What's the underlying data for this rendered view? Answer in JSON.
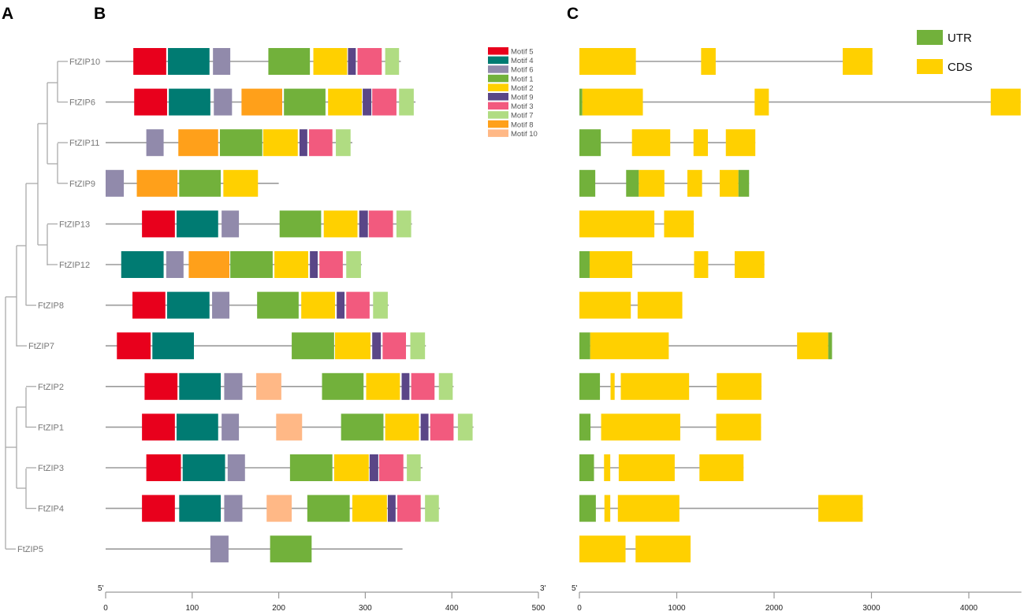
{
  "panels": {
    "a": "A",
    "b": "B",
    "c": "C"
  },
  "genes": [
    "FtZIP10",
    "FtZIP6",
    "FtZIP11",
    "FtZIP9",
    "FtZIP13",
    "FtZIP12",
    "FtZIP8",
    "FtZIP7",
    "FtZIP2",
    "FtZIP1",
    "FtZIP3",
    "FtZIP4",
    "FtZIP5"
  ],
  "motif_legend": [
    {
      "id": "M5",
      "label": "Motif 5",
      "color": "#e8001c"
    },
    {
      "id": "M4",
      "label": "Motif 4",
      "color": "#007b72"
    },
    {
      "id": "M6",
      "label": "Motif 6",
      "color": "#918aab"
    },
    {
      "id": "M1",
      "label": "Motif 1",
      "color": "#72b13b"
    },
    {
      "id": "M2",
      "label": "Motif 2",
      "color": "#ffd000"
    },
    {
      "id": "M9",
      "label": "Motif 9",
      "color": "#5a4687"
    },
    {
      "id": "M3",
      "label": "Motif 3",
      "color": "#f25a7e"
    },
    {
      "id": "M7",
      "label": "Motif 7",
      "color": "#b0dc82"
    },
    {
      "id": "M8",
      "label": "Motif 8",
      "color": "#ffa01a"
    },
    {
      "id": "M10",
      "label": "Motif 10",
      "color": "#ffb886"
    }
  ],
  "motifs": [
    {
      "length": 341,
      "items": [
        [
          "M5",
          32,
          70
        ],
        [
          "M4",
          72,
          120
        ],
        [
          "M6",
          124,
          144
        ],
        [
          "M1",
          188,
          236
        ],
        [
          "M2",
          240,
          279
        ],
        [
          "M9",
          280,
          289
        ],
        [
          "M3",
          291,
          319
        ],
        [
          "M7",
          323,
          339
        ]
      ]
    },
    {
      "length": 358,
      "items": [
        [
          "M5",
          33,
          71
        ],
        [
          "M4",
          73,
          121
        ],
        [
          "M6",
          125,
          146
        ],
        [
          "M8",
          157,
          204
        ],
        [
          "M1",
          206,
          254
        ],
        [
          "M2",
          257,
          296
        ],
        [
          "M9",
          297,
          307
        ],
        [
          "M3",
          308,
          336
        ],
        [
          "M7",
          339,
          356
        ]
      ]
    },
    {
      "length": 285,
      "items": [
        [
          "M6",
          47,
          67
        ],
        [
          "M8",
          84,
          130
        ],
        [
          "M1",
          132,
          181
        ],
        [
          "M2",
          182,
          222
        ],
        [
          "M9",
          224,
          233
        ],
        [
          "M3",
          235,
          262
        ],
        [
          "M7",
          266,
          283
        ]
      ]
    },
    {
      "length": 200,
      "items": [
        [
          "M6",
          0,
          21
        ],
        [
          "M8",
          36,
          83
        ],
        [
          "M1",
          85,
          133
        ],
        [
          "M2",
          136,
          176
        ]
      ]
    },
    {
      "length": 354,
      "items": [
        [
          "M5",
          42,
          80
        ],
        [
          "M4",
          82,
          130
        ],
        [
          "M6",
          134,
          154
        ],
        [
          "M1",
          201,
          249
        ],
        [
          "M2",
          252,
          291
        ],
        [
          "M9",
          293,
          303
        ],
        [
          "M3",
          304,
          332
        ],
        [
          "M7",
          336,
          353
        ]
      ]
    },
    {
      "length": 296,
      "items": [
        [
          "M4",
          18,
          67
        ],
        [
          "M6",
          70,
          90
        ],
        [
          "M8",
          96,
          143
        ],
        [
          "M1",
          144,
          193
        ],
        [
          "M2",
          195,
          234
        ],
        [
          "M9",
          236,
          245
        ],
        [
          "M3",
          247,
          274
        ],
        [
          "M7",
          278,
          295
        ]
      ]
    },
    {
      "length": 327,
      "items": [
        [
          "M5",
          31,
          69
        ],
        [
          "M4",
          71,
          120
        ],
        [
          "M6",
          123,
          143
        ],
        [
          "M1",
          175,
          223
        ],
        [
          "M2",
          226,
          265
        ],
        [
          "M9",
          267,
          276
        ],
        [
          "M3",
          278,
          305
        ],
        [
          "M7",
          309,
          326
        ]
      ]
    },
    {
      "length": 370,
      "items": [
        [
          "M5",
          13,
          52
        ],
        [
          "M4",
          54,
          102
        ],
        [
          "M1",
          215,
          264
        ],
        [
          "M2",
          265,
          306
        ],
        [
          "M9",
          308,
          318
        ],
        [
          "M3",
          320,
          347
        ],
        [
          "M7",
          352,
          369
        ]
      ]
    },
    {
      "length": 402,
      "items": [
        [
          "M5",
          45,
          83
        ],
        [
          "M4",
          85,
          133
        ],
        [
          "M6",
          137,
          158
        ],
        [
          "M10",
          174,
          203
        ],
        [
          "M1",
          250,
          298
        ],
        [
          "M2",
          301,
          340
        ],
        [
          "M9",
          342,
          351
        ],
        [
          "M3",
          353,
          380
        ],
        [
          "M7",
          385,
          401
        ]
      ]
    },
    {
      "length": 425,
      "items": [
        [
          "M5",
          42,
          80
        ],
        [
          "M4",
          82,
          130
        ],
        [
          "M6",
          134,
          154
        ],
        [
          "M10",
          197,
          227
        ],
        [
          "M1",
          272,
          321
        ],
        [
          "M2",
          323,
          362
        ],
        [
          "M9",
          364,
          373
        ],
        [
          "M3",
          375,
          402
        ],
        [
          "M7",
          407,
          424
        ]
      ]
    },
    {
      "length": 366,
      "items": [
        [
          "M5",
          47,
          87
        ],
        [
          "M4",
          89,
          138
        ],
        [
          "M6",
          141,
          161
        ],
        [
          "M1",
          213,
          262
        ],
        [
          "M2",
          264,
          304
        ],
        [
          "M9",
          305,
          315
        ],
        [
          "M3",
          316,
          344
        ],
        [
          "M7",
          348,
          364
        ]
      ]
    },
    {
      "length": 386,
      "items": [
        [
          "M5",
          42,
          80
        ],
        [
          "M4",
          85,
          133
        ],
        [
          "M6",
          137,
          158
        ],
        [
          "M10",
          186,
          215
        ],
        [
          "M1",
          233,
          282
        ],
        [
          "M2",
          285,
          325
        ],
        [
          "M9",
          326,
          335
        ],
        [
          "M3",
          337,
          364
        ],
        [
          "M7",
          369,
          385
        ]
      ]
    },
    {
      "length": 343,
      "items": [
        [
          "M6",
          121,
          142
        ],
        [
          "M1",
          190,
          238
        ]
      ]
    }
  ],
  "gene_legend": [
    {
      "id": "UTR",
      "label": "UTR",
      "color": "#72b13b"
    },
    {
      "id": "CDS",
      "label": "CDS",
      "color": "#ffd000"
    }
  ],
  "gene_structure": [
    {
      "length": 3010,
      "items": [
        [
          "CDS",
          0,
          580
        ],
        [
          "CDS",
          1250,
          1400
        ],
        [
          "CDS",
          2705,
          3010
        ]
      ]
    },
    {
      "length": 4533,
      "items": [
        [
          "UTR",
          0,
          30
        ],
        [
          "CDS",
          30,
          652
        ],
        [
          "CDS",
          1800,
          1946
        ],
        [
          "CDS",
          4225,
          4533
        ]
      ]
    },
    {
      "length": 1807,
      "items": [
        [
          "UTR",
          0,
          220
        ],
        [
          "CDS",
          540,
          933
        ],
        [
          "CDS",
          1172,
          1320
        ],
        [
          "CDS",
          1504,
          1807
        ]
      ]
    },
    {
      "length": 1743,
      "items": [
        [
          "UTR",
          0,
          163
        ],
        [
          "UTR",
          480,
          610
        ],
        [
          "CDS",
          610,
          873
        ],
        [
          "CDS",
          1109,
          1260
        ],
        [
          "CDS",
          1441,
          1634
        ],
        [
          "UTR",
          1634,
          1743
        ]
      ]
    },
    {
      "length": 1175,
      "items": [
        [
          "CDS",
          0,
          770
        ],
        [
          "CDS",
          870,
          1175
        ]
      ]
    },
    {
      "length": 1900,
      "items": [
        [
          "UTR",
          0,
          105
        ],
        [
          "CDS",
          105,
          543
        ],
        [
          "CDS",
          1178,
          1323
        ],
        [
          "CDS",
          1595,
          1900
        ]
      ]
    },
    {
      "length": 1057,
      "items": [
        [
          "CDS",
          0,
          528
        ],
        [
          "CDS",
          598,
          1057
        ]
      ]
    },
    {
      "length": 2595,
      "items": [
        [
          "UTR",
          0,
          111
        ],
        [
          "CDS",
          111,
          918
        ],
        [
          "CDS",
          2236,
          2556
        ],
        [
          "UTR",
          2556,
          2595
        ]
      ]
    },
    {
      "length": 1870,
      "items": [
        [
          "UTR",
          0,
          211
        ],
        [
          "CDS",
          320,
          362
        ],
        [
          "CDS",
          425,
          1127
        ],
        [
          "CDS",
          1411,
          1870
        ]
      ]
    },
    {
      "length": 1866,
      "items": [
        [
          "UTR",
          0,
          114
        ],
        [
          "CDS",
          223,
          1036
        ],
        [
          "CDS",
          1405,
          1866
        ]
      ]
    },
    {
      "length": 1686,
      "items": [
        [
          "UTR",
          0,
          150
        ],
        [
          "CDS",
          253,
          317
        ],
        [
          "CDS",
          404,
          979
        ],
        [
          "CDS",
          1233,
          1686
        ]
      ]
    },
    {
      "length": 2910,
      "items": [
        [
          "UTR",
          0,
          169
        ],
        [
          "CDS",
          257,
          317
        ],
        [
          "CDS",
          395,
          1027
        ],
        [
          "CDS",
          2454,
          2910
        ]
      ]
    },
    {
      "length": 1142,
      "items": [
        [
          "CDS",
          0,
          474
        ],
        [
          "CDS",
          577,
          1142
        ]
      ]
    }
  ],
  "axis_b": {
    "start": "5'",
    "end": "3'",
    "ticks": [
      0,
      100,
      200,
      300,
      400,
      500
    ],
    "max": 500
  },
  "axis_c": {
    "start": "5'",
    "ticks": [
      0,
      1000,
      2000,
      3000,
      4000
    ],
    "max": 4540
  }
}
